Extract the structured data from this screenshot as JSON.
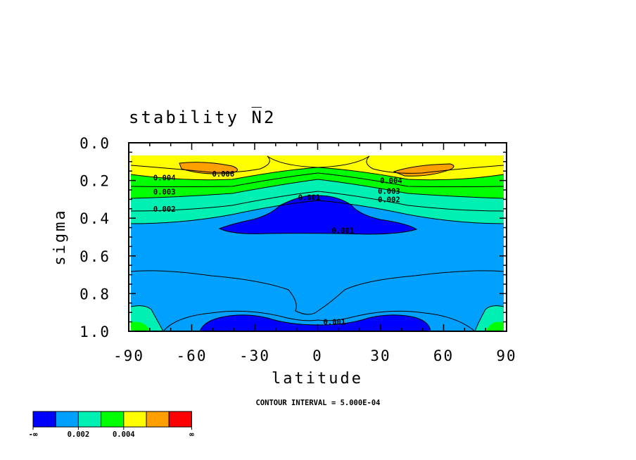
{
  "chart_data": {
    "type": "contour",
    "title": "stability N^2",
    "xlabel": "latitude",
    "ylabel": "sigma",
    "xlim": [
      -90,
      90
    ],
    "ylim": [
      1.0,
      0.0
    ],
    "x_ticks": [
      "-90",
      "-60",
      "-30",
      "0",
      "30",
      "60",
      "90"
    ],
    "y_ticks": [
      "0.0",
      "0.2",
      "0.4",
      "0.6",
      "0.8",
      "1.0"
    ],
    "contour_interval_text": "CONTOUR INTERVAL = 5.000E-04",
    "contour_labels": [
      {
        "text": "0.004",
        "lat": -73,
        "sigma": 0.185
      },
      {
        "text": "0.006",
        "lat": -45,
        "sigma": 0.165
      },
      {
        "text": "0.003",
        "lat": -73,
        "sigma": 0.26
      },
      {
        "text": "0.002",
        "lat": -73,
        "sigma": 0.35
      },
      {
        "text": "0.001",
        "lat": -4,
        "sigma": 0.29
      },
      {
        "text": "0.001",
        "lat": 12,
        "sigma": 0.465
      },
      {
        "text": "0.001",
        "lat": 8,
        "sigma": 0.95
      },
      {
        "text": "0.004",
        "lat": 35,
        "sigma": 0.2
      },
      {
        "text": "0.003",
        "lat": 34,
        "sigma": 0.255
      },
      {
        "text": "0.002",
        "lat": 34,
        "sigma": 0.3
      }
    ],
    "colorbar": {
      "colors": [
        "#0000ff",
        "#00a0ff",
        "#00f0b4",
        "#00ff00",
        "#ffff00",
        "#ffa000",
        "#ff0000"
      ],
      "labels": [
        "-∞",
        "0.002",
        "0.004",
        "∞"
      ]
    }
  }
}
